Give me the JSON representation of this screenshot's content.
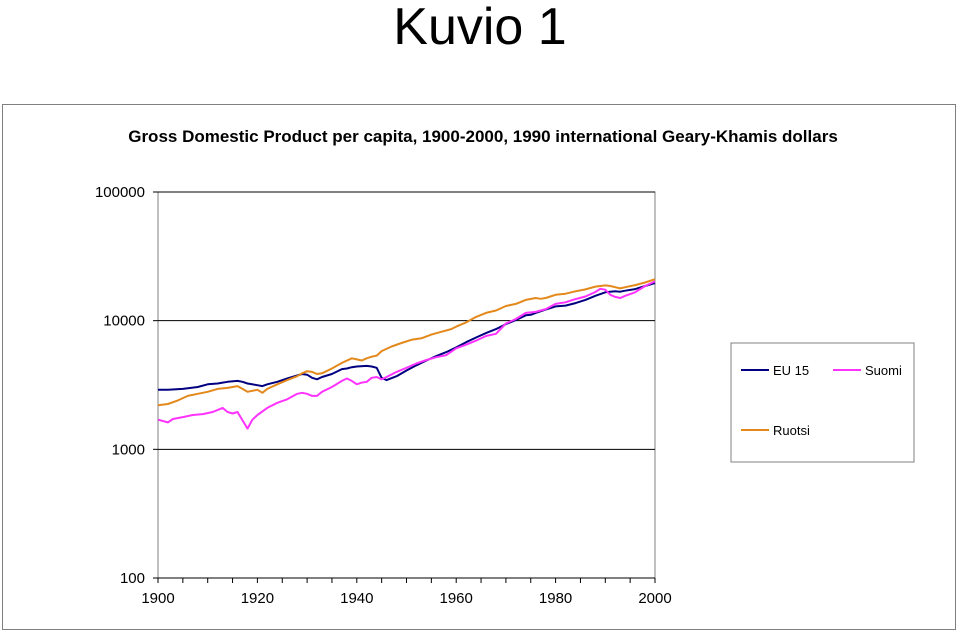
{
  "heading": "Kuvio 1",
  "chart_data": {
    "type": "line",
    "title": "Gross Domestic Product per capita, 1900-2000, 1990 international Geary-Khamis dollars",
    "xlabel": "",
    "ylabel": "",
    "y_scale": "log",
    "xlim": [
      1900,
      2000
    ],
    "ylim": [
      100,
      100000
    ],
    "x_ticks": [
      1900,
      1920,
      1940,
      1960,
      1980,
      2000
    ],
    "y_ticks": [
      100000,
      10000,
      1000,
      100
    ],
    "grid": "horizontal",
    "legend_position": "right",
    "series": [
      {
        "name": "EU 15",
        "color": "#000080",
        "points": [
          [
            1900,
            2900
          ],
          [
            1902,
            2900
          ],
          [
            1905,
            2950
          ],
          [
            1908,
            3050
          ],
          [
            1910,
            3200
          ],
          [
            1912,
            3250
          ],
          [
            1914,
            3350
          ],
          [
            1916,
            3400
          ],
          [
            1917,
            3350
          ],
          [
            1918,
            3250
          ],
          [
            1920,
            3150
          ],
          [
            1921,
            3100
          ],
          [
            1922,
            3200
          ],
          [
            1924,
            3350
          ],
          [
            1926,
            3550
          ],
          [
            1928,
            3750
          ],
          [
            1929,
            3850
          ],
          [
            1930,
            3800
          ],
          [
            1931,
            3600
          ],
          [
            1932,
            3500
          ],
          [
            1933,
            3650
          ],
          [
            1935,
            3850
          ],
          [
            1937,
            4200
          ],
          [
            1938,
            4250
          ],
          [
            1939,
            4350
          ],
          [
            1940,
            4400
          ],
          [
            1942,
            4450
          ],
          [
            1943,
            4400
          ],
          [
            1944,
            4300
          ],
          [
            1945,
            3600
          ],
          [
            1946,
            3450
          ],
          [
            1948,
            3700
          ],
          [
            1950,
            4100
          ],
          [
            1952,
            4500
          ],
          [
            1954,
            4900
          ],
          [
            1956,
            5300
          ],
          [
            1958,
            5700
          ],
          [
            1960,
            6200
          ],
          [
            1962,
            6800
          ],
          [
            1964,
            7400
          ],
          [
            1966,
            8000
          ],
          [
            1968,
            8600
          ],
          [
            1970,
            9400
          ],
          [
            1972,
            10100
          ],
          [
            1974,
            11000
          ],
          [
            1975,
            11100
          ],
          [
            1976,
            11500
          ],
          [
            1978,
            12200
          ],
          [
            1980,
            12900
          ],
          [
            1982,
            13100
          ],
          [
            1984,
            13700
          ],
          [
            1986,
            14500
          ],
          [
            1988,
            15600
          ],
          [
            1990,
            16600
          ],
          [
            1992,
            16900
          ],
          [
            1993,
            16800
          ],
          [
            1994,
            17100
          ],
          [
            1996,
            17600
          ],
          [
            1998,
            18600
          ],
          [
            2000,
            19600
          ]
        ]
      },
      {
        "name": "Suomi",
        "color": "#ff33ff",
        "points": [
          [
            1900,
            1700
          ],
          [
            1902,
            1620
          ],
          [
            1903,
            1720
          ],
          [
            1905,
            1780
          ],
          [
            1907,
            1850
          ],
          [
            1909,
            1880
          ],
          [
            1911,
            1950
          ],
          [
            1913,
            2100
          ],
          [
            1914,
            1950
          ],
          [
            1915,
            1900
          ],
          [
            1916,
            1950
          ],
          [
            1918,
            1450
          ],
          [
            1919,
            1700
          ],
          [
            1920,
            1850
          ],
          [
            1922,
            2100
          ],
          [
            1924,
            2300
          ],
          [
            1926,
            2450
          ],
          [
            1928,
            2700
          ],
          [
            1929,
            2750
          ],
          [
            1930,
            2700
          ],
          [
            1931,
            2600
          ],
          [
            1932,
            2600
          ],
          [
            1933,
            2800
          ],
          [
            1935,
            3050
          ],
          [
            1937,
            3400
          ],
          [
            1938,
            3550
          ],
          [
            1939,
            3400
          ],
          [
            1940,
            3200
          ],
          [
            1941,
            3300
          ],
          [
            1942,
            3350
          ],
          [
            1943,
            3600
          ],
          [
            1944,
            3650
          ],
          [
            1945,
            3500
          ],
          [
            1946,
            3650
          ],
          [
            1948,
            4000
          ],
          [
            1950,
            4300
          ],
          [
            1952,
            4650
          ],
          [
            1954,
            4950
          ],
          [
            1956,
            5200
          ],
          [
            1958,
            5400
          ],
          [
            1960,
            6100
          ],
          [
            1962,
            6500
          ],
          [
            1964,
            7000
          ],
          [
            1966,
            7600
          ],
          [
            1968,
            7900
          ],
          [
            1970,
            9500
          ],
          [
            1972,
            10300
          ],
          [
            1974,
            11500
          ],
          [
            1975,
            11600
          ],
          [
            1976,
            11700
          ],
          [
            1978,
            12300
          ],
          [
            1980,
            13500
          ],
          [
            1982,
            13900
          ],
          [
            1984,
            14700
          ],
          [
            1986,
            15400
          ],
          [
            1988,
            16700
          ],
          [
            1989,
            17700
          ],
          [
            1990,
            17400
          ],
          [
            1991,
            15900
          ],
          [
            1992,
            15300
          ],
          [
            1993,
            15000
          ],
          [
            1994,
            15600
          ],
          [
            1996,
            16600
          ],
          [
            1998,
            18600
          ],
          [
            2000,
            20200
          ]
        ]
      },
      {
        "name": "Ruotsi",
        "color": "#e3891c",
        "points": [
          [
            1900,
            2200
          ],
          [
            1902,
            2250
          ],
          [
            1904,
            2400
          ],
          [
            1906,
            2600
          ],
          [
            1908,
            2700
          ],
          [
            1910,
            2800
          ],
          [
            1912,
            2950
          ],
          [
            1914,
            3000
          ],
          [
            1916,
            3100
          ],
          [
            1917,
            2950
          ],
          [
            1918,
            2800
          ],
          [
            1920,
            2900
          ],
          [
            1921,
            2750
          ],
          [
            1922,
            2950
          ],
          [
            1924,
            3200
          ],
          [
            1926,
            3450
          ],
          [
            1928,
            3700
          ],
          [
            1929,
            3900
          ],
          [
            1930,
            4050
          ],
          [
            1931,
            4000
          ],
          [
            1932,
            3850
          ],
          [
            1933,
            3900
          ],
          [
            1935,
            4250
          ],
          [
            1937,
            4700
          ],
          [
            1939,
            5100
          ],
          [
            1940,
            5000
          ],
          [
            1941,
            4900
          ],
          [
            1942,
            5100
          ],
          [
            1943,
            5250
          ],
          [
            1944,
            5350
          ],
          [
            1945,
            5800
          ],
          [
            1947,
            6300
          ],
          [
            1949,
            6700
          ],
          [
            1951,
            7100
          ],
          [
            1953,
            7300
          ],
          [
            1955,
            7800
          ],
          [
            1957,
            8200
          ],
          [
            1959,
            8600
          ],
          [
            1960,
            9000
          ],
          [
            1962,
            9700
          ],
          [
            1964,
            10700
          ],
          [
            1966,
            11500
          ],
          [
            1968,
            12000
          ],
          [
            1970,
            13000
          ],
          [
            1972,
            13500
          ],
          [
            1974,
            14500
          ],
          [
            1976,
            15000
          ],
          [
            1977,
            14800
          ],
          [
            1978,
            15000
          ],
          [
            1980,
            15900
          ],
          [
            1982,
            16200
          ],
          [
            1984,
            16900
          ],
          [
            1986,
            17500
          ],
          [
            1988,
            18400
          ],
          [
            1990,
            18800
          ],
          [
            1991,
            18600
          ],
          [
            1992,
            18200
          ],
          [
            1993,
            17800
          ],
          [
            1994,
            18200
          ],
          [
            1996,
            18900
          ],
          [
            1998,
            19800
          ],
          [
            2000,
            21000
          ]
        ]
      }
    ]
  }
}
